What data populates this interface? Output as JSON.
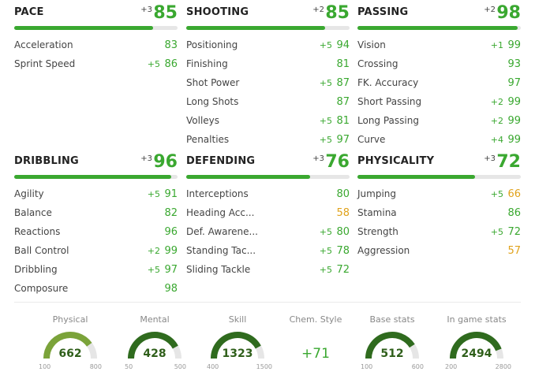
{
  "categories": [
    {
      "id": "pace",
      "title": "PACE",
      "boost": "+3",
      "value": "85",
      "stats": [
        {
          "name": "Acceleration",
          "boost": "",
          "value": "83"
        },
        {
          "name": "Sprint Speed",
          "boost": "+5",
          "value": "86"
        }
      ]
    },
    {
      "id": "shooting",
      "title": "SHOOTING",
      "boost": "+2",
      "value": "85",
      "stats": [
        {
          "name": "Positioning",
          "boost": "+5",
          "value": "94"
        },
        {
          "name": "Finishing",
          "boost": "",
          "value": "81"
        },
        {
          "name": "Shot Power",
          "boost": "+5",
          "value": "87"
        },
        {
          "name": "Long Shots",
          "boost": "",
          "value": "87"
        },
        {
          "name": "Volleys",
          "boost": "+5",
          "value": "81"
        },
        {
          "name": "Penalties",
          "boost": "+5",
          "value": "97"
        }
      ]
    },
    {
      "id": "passing",
      "title": "PASSING",
      "boost": "+2",
      "value": "98",
      "stats": [
        {
          "name": "Vision",
          "boost": "+1",
          "value": "99"
        },
        {
          "name": "Crossing",
          "boost": "",
          "value": "93"
        },
        {
          "name": "FK. Accuracy",
          "boost": "",
          "value": "97"
        },
        {
          "name": "Short Passing",
          "boost": "+2",
          "value": "99"
        },
        {
          "name": "Long Passing",
          "boost": "+2",
          "value": "99"
        },
        {
          "name": "Curve",
          "boost": "+4",
          "value": "99"
        }
      ]
    },
    {
      "id": "dribbling",
      "title": "DRIBBLING",
      "boost": "+3",
      "value": "96",
      "stats": [
        {
          "name": "Agility",
          "boost": "+5",
          "value": "91"
        },
        {
          "name": "Balance",
          "boost": "",
          "value": "82"
        },
        {
          "name": "Reactions",
          "boost": "",
          "value": "96"
        },
        {
          "name": "Ball Control",
          "boost": "+2",
          "value": "99"
        },
        {
          "name": "Dribbling",
          "boost": "+5",
          "value": "97"
        },
        {
          "name": "Composure",
          "boost": "",
          "value": "98"
        }
      ]
    },
    {
      "id": "defending",
      "title": "DEFENDING",
      "boost": "+3",
      "value": "76",
      "stats": [
        {
          "name": "Interceptions",
          "boost": "",
          "value": "80"
        },
        {
          "name": "Heading Acc...",
          "boost": "",
          "value": "58"
        },
        {
          "name": "Def. Awarene...",
          "boost": "+5",
          "value": "80"
        },
        {
          "name": "Standing Tac...",
          "boost": "+5",
          "value": "78"
        },
        {
          "name": "Sliding Tackle",
          "boost": "+5",
          "value": "72"
        }
      ]
    },
    {
      "id": "physicality",
      "title": "PHYSICALITY",
      "boost": "+3",
      "value": "72",
      "stats": [
        {
          "name": "Jumping",
          "boost": "+5",
          "value": "66"
        },
        {
          "name": "Stamina",
          "boost": "",
          "value": "86"
        },
        {
          "name": "Strength",
          "boost": "+5",
          "value": "72"
        },
        {
          "name": "Aggression",
          "boost": "",
          "value": "57"
        }
      ]
    }
  ],
  "gauges": [
    {
      "id": "physical",
      "label": "Physical",
      "value": "662",
      "min": "100",
      "max": "800",
      "fraction": 0.8,
      "color": "#7ba33a"
    },
    {
      "id": "mental",
      "label": "Mental",
      "value": "428",
      "min": "50",
      "max": "500",
      "fraction": 0.84,
      "color": "#2f6b1e"
    },
    {
      "id": "skill",
      "label": "Skill",
      "value": "1323",
      "min": "400",
      "max": "1500",
      "fraction": 0.84,
      "color": "#2f6b1e"
    },
    {
      "id": "base",
      "label": "Base stats",
      "value": "512",
      "min": "100",
      "max": "600",
      "fraction": 0.82,
      "color": "#2f6b1e"
    },
    {
      "id": "ingame",
      "label": "In game stats",
      "value": "2494",
      "min": "200",
      "max": "2800",
      "fraction": 0.88,
      "color": "#2f6b1e"
    }
  ],
  "chem": {
    "label": "Chem. Style",
    "value": "+71"
  },
  "colors": {
    "green": "#3aa830",
    "yellow": "#e0a21b",
    "dark_green": "#2f6b1e",
    "light_green": "#7ba33a",
    "track": "#e6e6e6"
  }
}
